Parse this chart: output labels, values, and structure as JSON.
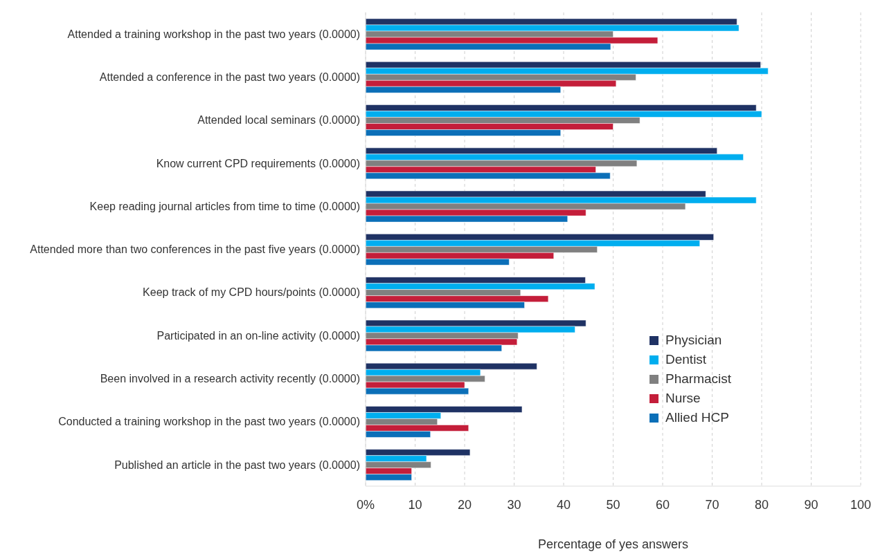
{
  "chart_data": {
    "type": "bar",
    "orientation": "horizontal",
    "xlabel": "Percentage of yes answers",
    "categories": [
      "Attended a training workshop in the past two years (0.0000)",
      "Attended a conference in the past two years (0.0000)",
      "Attended local seminars (0.0000)",
      "Know current CPD requirements (0.0000)",
      "Keep reading journal articles from time to time (0.0000)",
      "Attended more than two conferences in the past five years (0.0000)",
      "Keep track of my CPD hours/points (0.0000)",
      "Participated in an on-line activity (0.0000)",
      "Been involved in a research activity recently (0.0000)",
      "Conducted a training workshop in the past two years (0.0000)",
      "Published an article in the past two years (0.0000)"
    ],
    "series": [
      {
        "name": "Physician",
        "color": "#1f3264",
        "values": [
          75,
          79.8,
          78.9,
          71,
          68.7,
          70.3,
          44.4,
          44.5,
          34.6,
          31.6,
          21.1
        ]
      },
      {
        "name": "Dentist",
        "color": "#00aeef",
        "values": [
          75.4,
          81.3,
          80,
          76.3,
          78.9,
          67.5,
          46.3,
          42.3,
          23.2,
          15.2,
          12.3
        ]
      },
      {
        "name": "Pharmacist",
        "color": "#808080",
        "values": [
          50,
          54.6,
          55.4,
          54.8,
          64.6,
          46.8,
          31.3,
          30.8,
          24.1,
          14.5,
          13.2
        ]
      },
      {
        "name": "Nurse",
        "color": "#c41e3a",
        "values": [
          59,
          50.6,
          50,
          46.5,
          44.5,
          38,
          36.9,
          30.6,
          20,
          20.8,
          9.3
        ]
      },
      {
        "name": "Allied HCP",
        "color": "#0b6fb8",
        "values": [
          49.5,
          39.4,
          39.4,
          49.4,
          40.8,
          29,
          32.1,
          27.5,
          20.8,
          13.1,
          9.3
        ]
      }
    ],
    "xlim": [
      0,
      100
    ],
    "xticks": [
      {
        "value": 0,
        "label": "0%"
      },
      10,
      20,
      30,
      40,
      50,
      60,
      70,
      80,
      90,
      100
    ],
    "grid": "x",
    "legend": "right"
  }
}
